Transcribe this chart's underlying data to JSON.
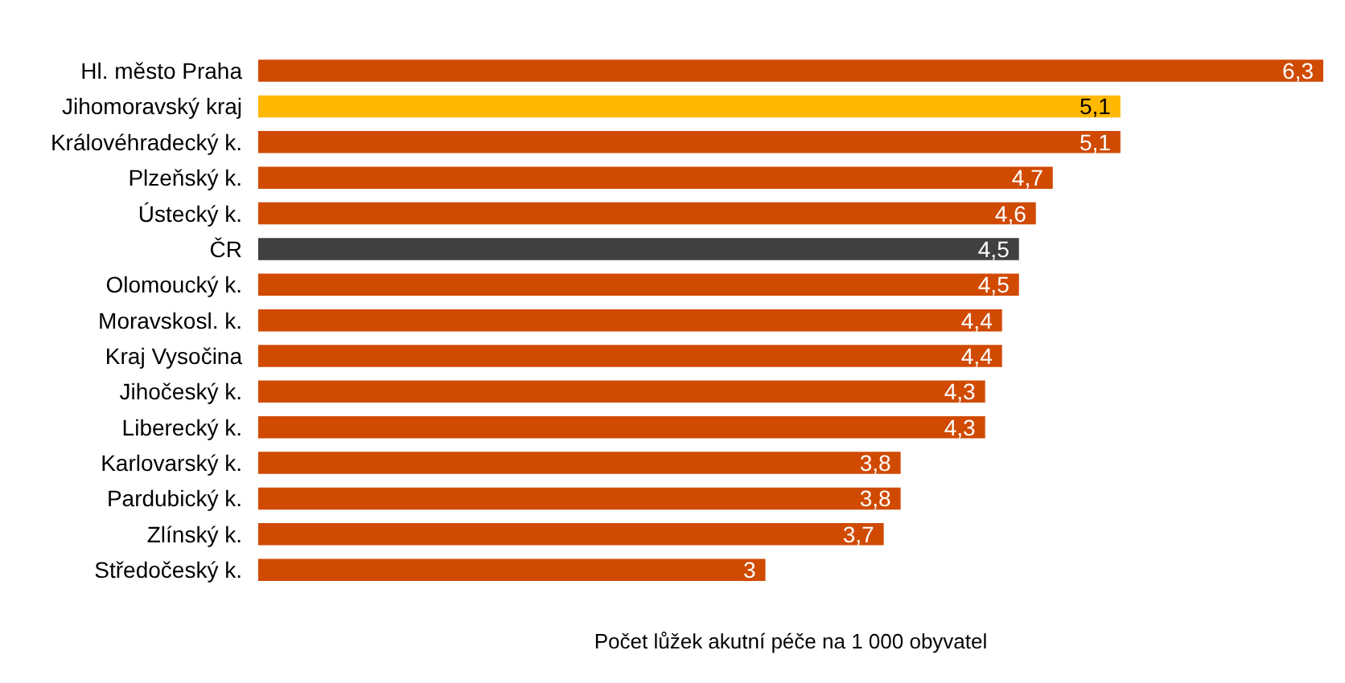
{
  "chart_data": {
    "type": "bar",
    "orientation": "horizontal",
    "xlabel": "Počet lůžek akutní péče na 1 000 obyvatel",
    "categories": [
      "Hl. město Praha",
      "Jihomoravský kraj",
      "Královéhradecký k.",
      "Plzeňský k.",
      "Ústecký k.",
      "ČR",
      "Olomoucký k.",
      "Moravskosl. k.",
      "Kraj Vysočina",
      "Jihočeský k.",
      "Liberecký k.",
      "Karlovarský k.",
      "Pardubický k.",
      "Zlínský k.",
      "Středočeský k."
    ],
    "values": [
      6.3,
      5.1,
      5.1,
      4.7,
      4.6,
      4.5,
      4.5,
      4.4,
      4.4,
      4.3,
      4.3,
      3.8,
      3.8,
      3.7,
      3
    ],
    "colors": [
      "#d04a02",
      "#ffb800",
      "#d04a02",
      "#d04a02",
      "#d04a02",
      "#404040",
      "#d04a02",
      "#d04a02",
      "#d04a02",
      "#d04a02",
      "#d04a02",
      "#d04a02",
      "#d04a02",
      "#d04a02",
      "#d04a02"
    ],
    "value_labels": [
      "6,3",
      "5,1",
      "5,1",
      "4,7",
      "4,6",
      "4,5",
      "4,5",
      "4,4",
      "4,4",
      "4,3",
      "4,3",
      "3,8",
      "3,8",
      "3,7",
      "3"
    ],
    "grid": false
  }
}
